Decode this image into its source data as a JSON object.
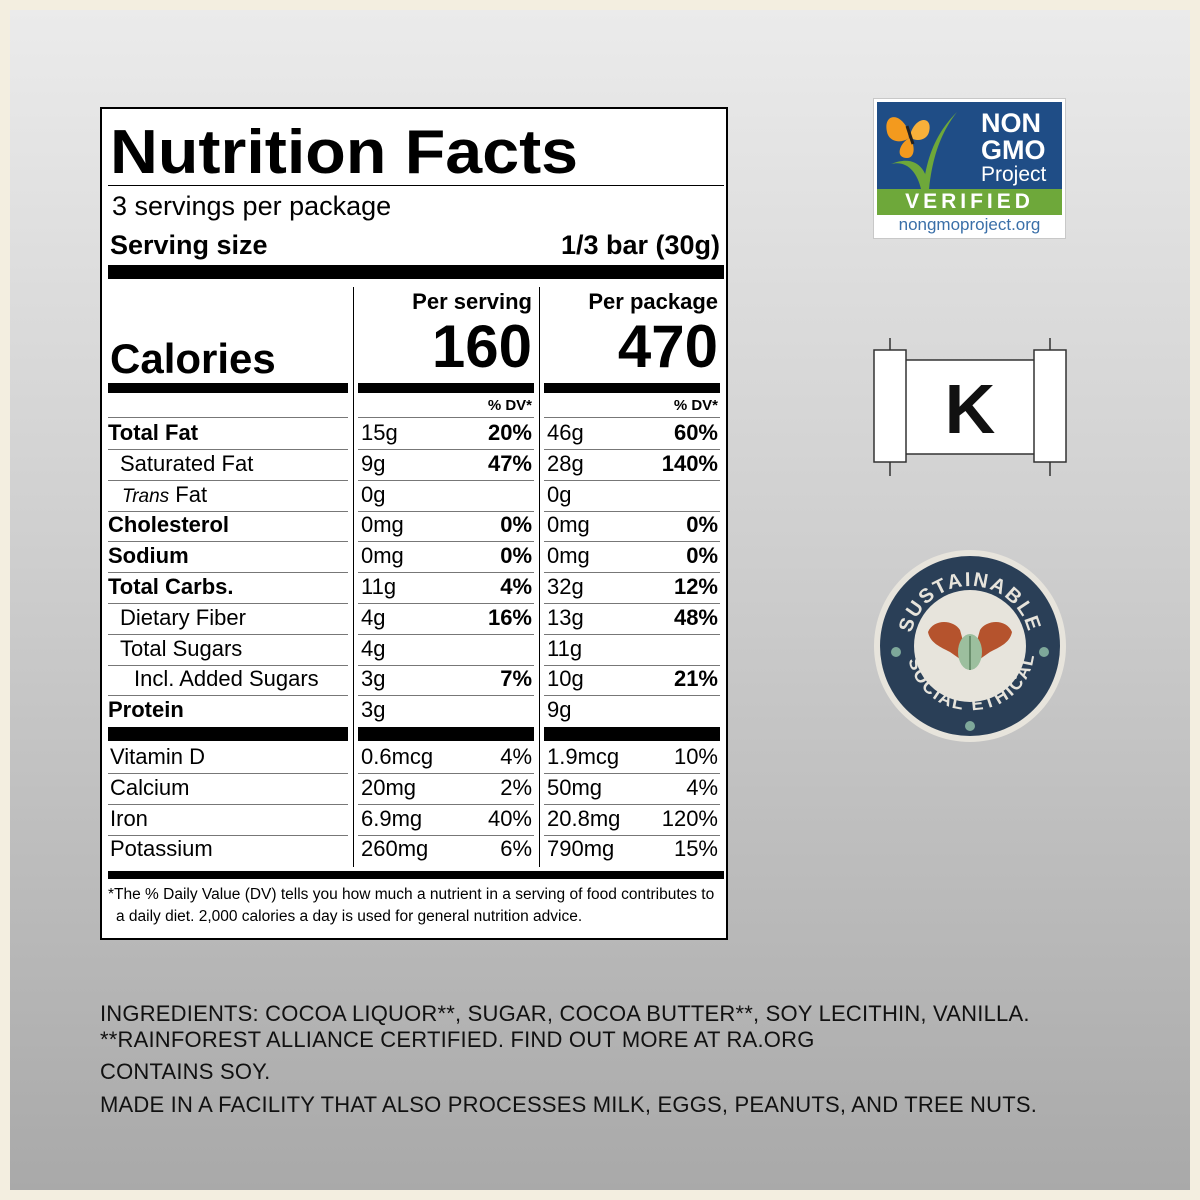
{
  "nutrition": {
    "title": "Nutrition Facts",
    "servings": "3 servings per package",
    "serving_size_label": "Serving size",
    "serving_size_value": "1/3 bar (30g)",
    "calories_label": "Calories",
    "col1_header": "Per serving",
    "col2_header": "Per package",
    "col1_calories": "160",
    "col2_calories": "470",
    "dv_header": "% DV*",
    "rows": [
      {
        "label": "Total Fat",
        "a": "15g",
        "a_dv": "20%",
        "b": "46g",
        "b_dv": "60%"
      },
      {
        "label": "Saturated Fat",
        "a": "9g",
        "a_dv": "47%",
        "b": "28g",
        "b_dv": "140%"
      },
      {
        "label_italic": "Trans",
        "label_rest": " Fat",
        "a": "0g",
        "a_dv": "",
        "b": "0g",
        "b_dv": ""
      },
      {
        "label": "Cholesterol",
        "a": "0mg",
        "a_dv": "0%",
        "b": "0mg",
        "b_dv": "0%"
      },
      {
        "label": "Sodium",
        "a": "0mg",
        "a_dv": "0%",
        "b": "0mg",
        "b_dv": "0%"
      },
      {
        "label": "Total Carbs.",
        "a": "11g",
        "a_dv": "4%",
        "b": "32g",
        "b_dv": "12%"
      },
      {
        "label": "Dietary Fiber",
        "a": "4g",
        "a_dv": "16%",
        "b": "13g",
        "b_dv": "48%"
      },
      {
        "label": "Total Sugars",
        "a": "4g",
        "a_dv": "",
        "b": "11g",
        "b_dv": ""
      },
      {
        "label": "Incl. Added Sugars",
        "a": "3g",
        "a_dv": "7%",
        "b": "10g",
        "b_dv": "21%"
      },
      {
        "label": "Protein",
        "a": "3g",
        "a_dv": "",
        "b": "9g",
        "b_dv": ""
      }
    ],
    "vitamins": [
      {
        "label": "Vitamin D",
        "a": "0.6mcg",
        "a_dv": "4%",
        "b": "1.9mcg",
        "b_dv": "10%"
      },
      {
        "label": "Calcium",
        "a": "20mg",
        "a_dv": "2%",
        "b": "50mg",
        "b_dv": "4%"
      },
      {
        "label": "Iron",
        "a": "6.9mg",
        "a_dv": "40%",
        "b": "20.8mg",
        "b_dv": "120%"
      },
      {
        "label": "Potassium",
        "a": "260mg",
        "a_dv": "6%",
        "b": "790mg",
        "b_dv": "15%"
      }
    ],
    "footnote_1": "*The % Daily Value (DV) tells you how much a nutrient in a serving of food contributes to",
    "footnote_2": "a daily diet. 2,000 calories a day is used for general nutrition advice."
  },
  "badges": {
    "nongmo_line1": "NON",
    "nongmo_line2": "GMO",
    "nongmo_line3": "Project",
    "nongmo_verified": "VERIFIED",
    "nongmo_url": "nongmoproject.org",
    "kosher_letter": "K",
    "sustainable_top": "SUSTAINABLE",
    "sustainable_left": "SOCIAL",
    "sustainable_right": "ETHICAL",
    "colors": {
      "nongmo_blue": "#1f4d86",
      "nongmo_green": "#6ea83a",
      "seal_navy": "#2a3f57",
      "seal_teal": "#7ea89a",
      "hands": "#b5532d"
    }
  },
  "ingredients": {
    "line1": "INGREDIENTS: COCOA LIQUOR**, SUGAR, COCOA BUTTER**, SOY LECITHIN, VANILLA.",
    "line2": "**RAINFOREST ALLIANCE CERTIFIED. FIND OUT MORE AT RA.ORG",
    "line3": "CONTAINS SOY.",
    "line4": "MADE IN A FACILITY THAT ALSO PROCESSES MILK, EGGS, PEANUTS, AND TREE NUTS."
  }
}
